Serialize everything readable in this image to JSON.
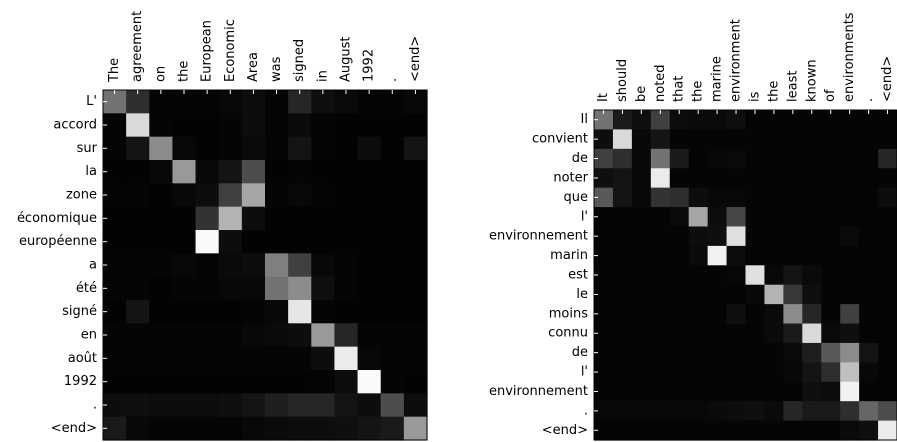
{
  "chart_data": [
    {
      "type": "heatmap",
      "colormap": "grayscale (black = 0, white = 1)",
      "x_tick_labels": [
        "The",
        "agreement",
        "on",
        "the",
        "European",
        "Economic",
        "Area",
        "was",
        "signed",
        "in",
        "August",
        "1992",
        ".",
        "<end>"
      ],
      "y_tick_labels": [
        "L'",
        "accord",
        "sur",
        "la",
        "zone",
        "économique",
        "européenne",
        "a",
        "été",
        "signé",
        "en",
        "août",
        "1992",
        ".",
        "<end>"
      ],
      "values": [
        [
          0.45,
          0.18,
          0.02,
          0.02,
          0.02,
          0.03,
          0.05,
          0.02,
          0.15,
          0.06,
          0.04,
          0.02,
          0.02,
          0.03
        ],
        [
          0.02,
          0.85,
          0.02,
          0.01,
          0.01,
          0.02,
          0.05,
          0.02,
          0.04,
          0.02,
          0.01,
          0.01,
          0.01,
          0.01
        ],
        [
          0.02,
          0.08,
          0.55,
          0.03,
          0.01,
          0.02,
          0.04,
          0.02,
          0.08,
          0.02,
          0.01,
          0.05,
          0.01,
          0.08
        ],
        [
          0.01,
          0.01,
          0.03,
          0.6,
          0.03,
          0.08,
          0.3,
          0.01,
          0.02,
          0.01,
          0.01,
          0.01,
          0.01,
          0.01
        ],
        [
          0.02,
          0.02,
          0.01,
          0.03,
          0.05,
          0.25,
          0.65,
          0.02,
          0.03,
          0.02,
          0.01,
          0.01,
          0.01,
          0.01
        ],
        [
          0.01,
          0.01,
          0.01,
          0.01,
          0.2,
          0.7,
          0.05,
          0.01,
          0.01,
          0.01,
          0.01,
          0.01,
          0.01,
          0.01
        ],
        [
          0.01,
          0.01,
          0.01,
          0.01,
          0.98,
          0.05,
          0.01,
          0.01,
          0.01,
          0.01,
          0.01,
          0.01,
          0.01,
          0.01
        ],
        [
          0.02,
          0.02,
          0.02,
          0.03,
          0.02,
          0.04,
          0.05,
          0.5,
          0.25,
          0.03,
          0.02,
          0.01,
          0.01,
          0.01
        ],
        [
          0.02,
          0.02,
          0.01,
          0.02,
          0.02,
          0.03,
          0.03,
          0.45,
          0.55,
          0.06,
          0.02,
          0.01,
          0.01,
          0.01
        ],
        [
          0.01,
          0.08,
          0.01,
          0.01,
          0.01,
          0.01,
          0.02,
          0.03,
          0.9,
          0.02,
          0.01,
          0.01,
          0.01,
          0.01
        ],
        [
          0.02,
          0.02,
          0.02,
          0.02,
          0.02,
          0.02,
          0.03,
          0.04,
          0.05,
          0.6,
          0.15,
          0.02,
          0.02,
          0.02
        ],
        [
          0.02,
          0.02,
          0.02,
          0.02,
          0.02,
          0.02,
          0.02,
          0.02,
          0.02,
          0.05,
          0.92,
          0.03,
          0.02,
          0.02
        ],
        [
          0.01,
          0.01,
          0.01,
          0.01,
          0.01,
          0.01,
          0.01,
          0.01,
          0.01,
          0.02,
          0.05,
          0.98,
          0.02,
          0.01
        ],
        [
          0.05,
          0.06,
          0.05,
          0.05,
          0.05,
          0.06,
          0.08,
          0.12,
          0.15,
          0.15,
          0.08,
          0.05,
          0.3,
          0.05
        ],
        [
          0.1,
          0.03,
          0.02,
          0.02,
          0.02,
          0.02,
          0.03,
          0.04,
          0.05,
          0.05,
          0.06,
          0.08,
          0.1,
          0.6
        ]
      ]
    },
    {
      "type": "heatmap",
      "colormap": "grayscale (black = 0, white = 1)",
      "x_tick_labels": [
        "It",
        "should",
        "be",
        "noted",
        "that",
        "the",
        "marine",
        "environment",
        "is",
        "the",
        "least",
        "known",
        "of",
        "environments",
        ".",
        "<end>"
      ],
      "y_tick_labels": [
        "Il",
        "convient",
        "de",
        "noter",
        "que",
        "l'",
        "environnement",
        "marin",
        "est",
        "le",
        "moins",
        "connu",
        "de",
        "l'",
        "environnement",
        ".",
        "<end>"
      ],
      "values": [
        [
          0.45,
          0.1,
          0.06,
          0.25,
          0.05,
          0.04,
          0.04,
          0.06,
          0.02,
          0.02,
          0.02,
          0.02,
          0.02,
          0.02,
          0.02,
          0.02
        ],
        [
          0.05,
          0.85,
          0.03,
          0.08,
          0.02,
          0.02,
          0.02,
          0.02,
          0.02,
          0.02,
          0.02,
          0.02,
          0.02,
          0.02,
          0.02,
          0.02
        ],
        [
          0.25,
          0.18,
          0.03,
          0.45,
          0.1,
          0.02,
          0.03,
          0.04,
          0.02,
          0.02,
          0.02,
          0.02,
          0.02,
          0.02,
          0.02,
          0.15
        ],
        [
          0.06,
          0.08,
          0.03,
          0.92,
          0.02,
          0.02,
          0.02,
          0.02,
          0.02,
          0.02,
          0.02,
          0.02,
          0.02,
          0.02,
          0.02,
          0.02
        ],
        [
          0.35,
          0.08,
          0.03,
          0.2,
          0.18,
          0.05,
          0.03,
          0.03,
          0.02,
          0.02,
          0.02,
          0.02,
          0.02,
          0.02,
          0.02,
          0.05
        ],
        [
          0.02,
          0.02,
          0.02,
          0.02,
          0.04,
          0.65,
          0.05,
          0.28,
          0.02,
          0.02,
          0.02,
          0.02,
          0.02,
          0.02,
          0.02,
          0.02
        ],
        [
          0.02,
          0.02,
          0.02,
          0.02,
          0.02,
          0.05,
          0.06,
          0.88,
          0.02,
          0.02,
          0.02,
          0.02,
          0.02,
          0.04,
          0.02,
          0.02
        ],
        [
          0.02,
          0.02,
          0.02,
          0.02,
          0.02,
          0.04,
          0.95,
          0.05,
          0.02,
          0.02,
          0.02,
          0.02,
          0.02,
          0.02,
          0.02,
          0.02
        ],
        [
          0.02,
          0.02,
          0.02,
          0.02,
          0.02,
          0.02,
          0.02,
          0.03,
          0.88,
          0.03,
          0.08,
          0.04,
          0.02,
          0.02,
          0.02,
          0.02
        ],
        [
          0.02,
          0.02,
          0.02,
          0.02,
          0.02,
          0.02,
          0.02,
          0.02,
          0.03,
          0.7,
          0.22,
          0.06,
          0.02,
          0.02,
          0.02,
          0.02
        ],
        [
          0.02,
          0.02,
          0.02,
          0.02,
          0.02,
          0.02,
          0.02,
          0.06,
          0.02,
          0.04,
          0.55,
          0.15,
          0.02,
          0.25,
          0.02,
          0.02
        ],
        [
          0.02,
          0.02,
          0.02,
          0.02,
          0.02,
          0.02,
          0.02,
          0.02,
          0.02,
          0.04,
          0.1,
          0.85,
          0.04,
          0.06,
          0.02,
          0.02
        ],
        [
          0.02,
          0.02,
          0.02,
          0.02,
          0.02,
          0.02,
          0.02,
          0.02,
          0.02,
          0.02,
          0.04,
          0.12,
          0.35,
          0.55,
          0.08,
          0.02
        ],
        [
          0.02,
          0.02,
          0.02,
          0.02,
          0.02,
          0.02,
          0.02,
          0.02,
          0.02,
          0.02,
          0.03,
          0.08,
          0.18,
          0.75,
          0.03,
          0.02
        ],
        [
          0.02,
          0.02,
          0.02,
          0.02,
          0.02,
          0.02,
          0.02,
          0.02,
          0.02,
          0.02,
          0.02,
          0.06,
          0.05,
          0.95,
          0.02,
          0.02
        ],
        [
          0.03,
          0.03,
          0.03,
          0.03,
          0.03,
          0.03,
          0.04,
          0.05,
          0.06,
          0.04,
          0.15,
          0.1,
          0.1,
          0.18,
          0.4,
          0.3
        ],
        [
          0.02,
          0.02,
          0.02,
          0.02,
          0.02,
          0.02,
          0.02,
          0.02,
          0.02,
          0.02,
          0.02,
          0.02,
          0.02,
          0.04,
          0.06,
          0.92
        ]
      ]
    }
  ]
}
